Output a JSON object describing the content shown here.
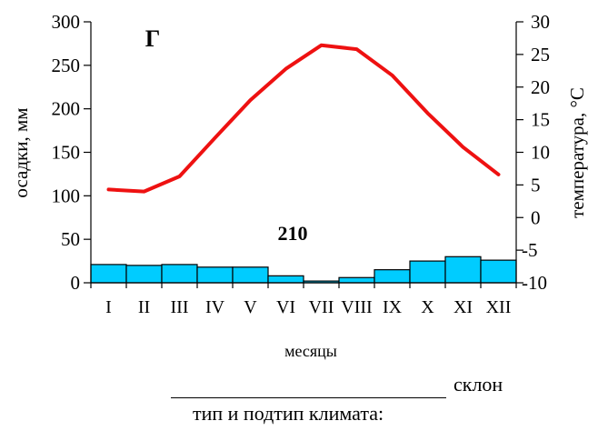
{
  "chart_data": {
    "type": "bar+line",
    "label": "Г",
    "annotation": "210",
    "categories": [
      "I",
      "II",
      "III",
      "IV",
      "V",
      "VI",
      "VII",
      "VIII",
      "IX",
      "X",
      "XI",
      "XII"
    ],
    "series": [
      {
        "kind": "bar",
        "axis": "left",
        "color": "#00ccff",
        "values": [
          21,
          20,
          21,
          18,
          18,
          8,
          2,
          6,
          15,
          25,
          30,
          26
        ]
      },
      {
        "kind": "line",
        "axis": "right",
        "color": "#ee1111",
        "values": [
          4.3,
          4,
          6.3,
          12.2,
          18,
          22.8,
          26.4,
          25.8,
          21.8,
          16,
          10.8,
          6.6
        ]
      }
    ],
    "ylabel": "осадки, мм",
    "y2label": "температура, °С",
    "xlabel": "месяцы",
    "ylim": [
      0,
      300
    ],
    "yticks": [
      0,
      50,
      100,
      150,
      200,
      250,
      300
    ],
    "y2lim": [
      -10,
      30
    ],
    "y2ticks": [
      -10,
      -5,
      0,
      5,
      10,
      15,
      20,
      25,
      30
    ],
    "grid": false,
    "legend": "none"
  },
  "footer": {
    "slope_suffix": "склон",
    "climate_prompt": "тип и подтип климата:"
  }
}
